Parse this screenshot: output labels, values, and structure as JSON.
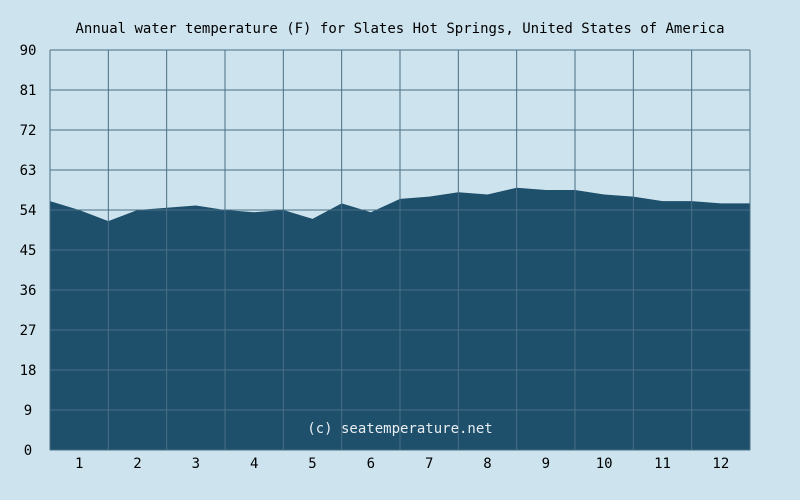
{
  "colors": {
    "background": "#cde3ee",
    "area_fill": "#1e4f6b",
    "grid_line": "#4a6f86",
    "text": "#000000",
    "watermark": "#e8eef2"
  },
  "chart_data": {
    "type": "area",
    "title": "Annual water temperature (F) for Slates Hot Springs, United States of America",
    "xlabel": "",
    "ylabel": "",
    "ylim": [
      0,
      90
    ],
    "yticks": [
      "0",
      "9",
      "18",
      "27",
      "36",
      "45",
      "54",
      "63",
      "72",
      "81",
      "90"
    ],
    "xticks": [
      "1",
      "2",
      "3",
      "4",
      "5",
      "6",
      "7",
      "8",
      "9",
      "10",
      "11",
      "12"
    ],
    "grid": true,
    "watermark": "(c) seatemperature.net",
    "x": [
      0.5,
      1.0,
      1.5,
      2.0,
      2.5,
      3.0,
      3.5,
      4.0,
      4.5,
      5.0,
      5.5,
      6.0,
      6.5,
      7.0,
      7.5,
      8.0,
      8.5,
      9.0,
      9.5,
      10.0,
      10.5,
      11.0,
      11.5,
      12.0,
      12.5
    ],
    "values": [
      56,
      54,
      51.5,
      54,
      54.5,
      55,
      54,
      53.5,
      54,
      52,
      55.5,
      53.5,
      56.5,
      57,
      58,
      57.5,
      59,
      58.5,
      58.5,
      57.5,
      57,
      56,
      56,
      55.5,
      55.5
    ]
  }
}
